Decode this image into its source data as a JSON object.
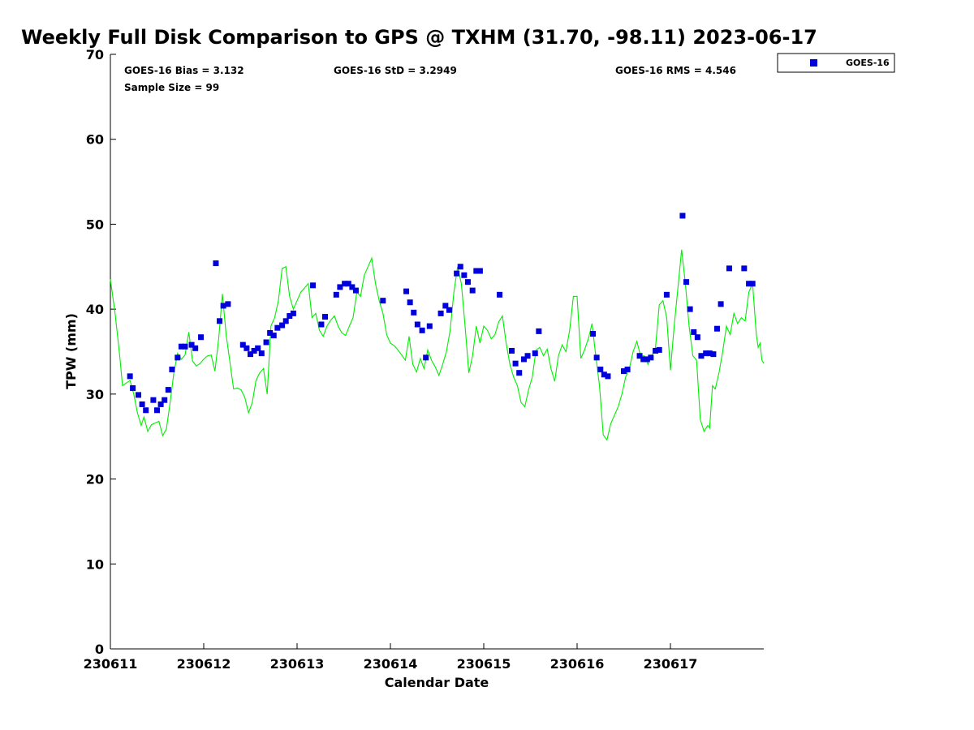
{
  "chart_data": {
    "type": "scatter",
    "title": "Weekly Full Disk Comparison to GPS @ TXHM (31.70, -98.11) 2023-06-17",
    "xlabel": "Calendar Date",
    "ylabel": "TPW (mm)",
    "xlim": [
      0,
      7.0
    ],
    "ylim": [
      0,
      70
    ],
    "y_ticks": [
      0,
      10,
      20,
      30,
      40,
      50,
      60,
      70
    ],
    "x_tick_labels": [
      "230611",
      "230612",
      "230613",
      "230614",
      "230615",
      "230616",
      "230617"
    ],
    "x_tick_positions_days": [
      0,
      1,
      2,
      3,
      4,
      5,
      6
    ],
    "grid": false,
    "legend_position": "top-right",
    "stats": {
      "bias": "GOES-16 Bias = 3.132",
      "std": "GOES-16 StD = 3.2949",
      "rms": "GOES-16 RMS = 4.546",
      "sample": "Sample Size = 99"
    },
    "series": [
      {
        "name": "GOES-16",
        "kind": "scatter",
        "color": "#0000dd",
        "points": [
          [
            0.21,
            32.1
          ],
          [
            0.24,
            30.7
          ],
          [
            0.3,
            29.9
          ],
          [
            0.34,
            28.8
          ],
          [
            0.38,
            28.1
          ],
          [
            0.46,
            29.3
          ],
          [
            0.5,
            28.1
          ],
          [
            0.54,
            28.8
          ],
          [
            0.58,
            29.3
          ],
          [
            0.62,
            30.5
          ],
          [
            0.66,
            32.9
          ],
          [
            0.72,
            34.3
          ],
          [
            0.76,
            35.6
          ],
          [
            0.8,
            35.6
          ],
          [
            0.87,
            35.8
          ],
          [
            0.91,
            35.4
          ],
          [
            0.97,
            36.7
          ],
          [
            1.13,
            45.4
          ],
          [
            1.17,
            38.6
          ],
          [
            1.21,
            40.4
          ],
          [
            1.26,
            40.6
          ],
          [
            1.42,
            35.8
          ],
          [
            1.46,
            35.4
          ],
          [
            1.5,
            34.7
          ],
          [
            1.54,
            35.1
          ],
          [
            1.58,
            35.4
          ],
          [
            1.62,
            34.8
          ],
          [
            1.67,
            36.1
          ],
          [
            1.71,
            37.2
          ],
          [
            1.75,
            36.9
          ],
          [
            1.79,
            37.8
          ],
          [
            1.84,
            38.1
          ],
          [
            1.88,
            38.6
          ],
          [
            1.92,
            39.2
          ],
          [
            1.96,
            39.5
          ],
          [
            2.17,
            42.8
          ],
          [
            2.26,
            38.2
          ],
          [
            2.3,
            39.1
          ],
          [
            2.42,
            41.7
          ],
          [
            2.46,
            42.6
          ],
          [
            2.51,
            43.0
          ],
          [
            2.55,
            43.0
          ],
          [
            2.59,
            42.6
          ],
          [
            2.63,
            42.2
          ],
          [
            2.92,
            41.0
          ],
          [
            3.17,
            42.1
          ],
          [
            3.21,
            40.8
          ],
          [
            3.25,
            39.6
          ],
          [
            3.29,
            38.2
          ],
          [
            3.34,
            37.5
          ],
          [
            3.38,
            34.3
          ],
          [
            3.42,
            38.0
          ],
          [
            3.54,
            39.5
          ],
          [
            3.59,
            40.4
          ],
          [
            3.63,
            39.9
          ],
          [
            3.71,
            44.2
          ],
          [
            3.75,
            45.0
          ],
          [
            3.79,
            44.0
          ],
          [
            3.83,
            43.2
          ],
          [
            3.88,
            42.2
          ],
          [
            3.92,
            44.5
          ],
          [
            3.96,
            44.5
          ],
          [
            4.17,
            41.7
          ],
          [
            4.3,
            35.1
          ],
          [
            4.34,
            33.6
          ],
          [
            4.38,
            32.5
          ],
          [
            4.43,
            34.1
          ],
          [
            4.47,
            34.5
          ],
          [
            4.55,
            34.8
          ],
          [
            4.59,
            37.4
          ],
          [
            5.17,
            37.1
          ],
          [
            5.21,
            34.3
          ],
          [
            5.25,
            32.9
          ],
          [
            5.29,
            32.3
          ],
          [
            5.33,
            32.1
          ],
          [
            5.5,
            32.7
          ],
          [
            5.54,
            32.9
          ],
          [
            5.67,
            34.5
          ],
          [
            5.71,
            34.1
          ],
          [
            5.75,
            34.1
          ],
          [
            5.79,
            34.3
          ],
          [
            5.84,
            35.1
          ],
          [
            5.88,
            35.2
          ],
          [
            5.96,
            41.7
          ],
          [
            6.13,
            51.0
          ],
          [
            6.17,
            43.2
          ],
          [
            6.21,
            40.0
          ],
          [
            6.25,
            37.3
          ],
          [
            6.29,
            36.7
          ],
          [
            6.33,
            34.5
          ],
          [
            6.38,
            34.8
          ],
          [
            6.42,
            34.8
          ],
          [
            6.46,
            34.7
          ],
          [
            6.5,
            37.7
          ],
          [
            6.54,
            40.6
          ],
          [
            6.63,
            44.8
          ],
          [
            6.79,
            44.8
          ],
          [
            6.84,
            43.0
          ],
          [
            6.88,
            43.0
          ]
        ]
      },
      {
        "kind": "line",
        "color": "#00ee00",
        "points": [
          [
            0.0,
            43.5
          ],
          [
            0.05,
            39.5
          ],
          [
            0.1,
            34.5
          ],
          [
            0.13,
            31.0
          ],
          [
            0.17,
            31.3
          ],
          [
            0.21,
            31.6
          ],
          [
            0.25,
            30.0
          ],
          [
            0.29,
            27.8
          ],
          [
            0.33,
            26.3
          ],
          [
            0.36,
            27.3
          ],
          [
            0.4,
            25.6
          ],
          [
            0.44,
            26.4
          ],
          [
            0.48,
            26.6
          ],
          [
            0.52,
            26.8
          ],
          [
            0.56,
            25.1
          ],
          [
            0.6,
            25.9
          ],
          [
            0.64,
            29.0
          ],
          [
            0.68,
            32.5
          ],
          [
            0.72,
            34.8
          ],
          [
            0.76,
            34.1
          ],
          [
            0.8,
            34.6
          ],
          [
            0.84,
            37.3
          ],
          [
            0.88,
            33.9
          ],
          [
            0.92,
            33.3
          ],
          [
            0.96,
            33.6
          ],
          [
            1.0,
            34.1
          ],
          [
            1.04,
            34.5
          ],
          [
            1.08,
            34.6
          ],
          [
            1.12,
            32.7
          ],
          [
            1.16,
            36.5
          ],
          [
            1.2,
            41.8
          ],
          [
            1.24,
            37.0
          ],
          [
            1.28,
            33.8
          ],
          [
            1.32,
            30.6
          ],
          [
            1.36,
            30.7
          ],
          [
            1.4,
            30.5
          ],
          [
            1.44,
            29.6
          ],
          [
            1.48,
            27.8
          ],
          [
            1.52,
            29.0
          ],
          [
            1.56,
            31.6
          ],
          [
            1.6,
            32.5
          ],
          [
            1.64,
            33.0
          ],
          [
            1.68,
            30.0
          ],
          [
            1.72,
            38.0
          ],
          [
            1.76,
            39.0
          ],
          [
            1.8,
            41.0
          ],
          [
            1.84,
            44.8
          ],
          [
            1.88,
            45.0
          ],
          [
            1.92,
            41.5
          ],
          [
            1.96,
            40.0
          ],
          [
            2.0,
            41.0
          ],
          [
            2.04,
            42.0
          ],
          [
            2.08,
            42.5
          ],
          [
            2.12,
            43.0
          ],
          [
            2.16,
            39.0
          ],
          [
            2.2,
            39.5
          ],
          [
            2.24,
            37.5
          ],
          [
            2.28,
            36.8
          ],
          [
            2.32,
            38.0
          ],
          [
            2.36,
            38.7
          ],
          [
            2.4,
            39.2
          ],
          [
            2.44,
            38.0
          ],
          [
            2.48,
            37.2
          ],
          [
            2.52,
            36.9
          ],
          [
            2.56,
            38.0
          ],
          [
            2.6,
            39.0
          ],
          [
            2.64,
            42.0
          ],
          [
            2.68,
            41.5
          ],
          [
            2.72,
            44.0
          ],
          [
            2.76,
            45.0
          ],
          [
            2.8,
            46.0
          ],
          [
            2.84,
            43.0
          ],
          [
            2.88,
            41.0
          ],
          [
            2.92,
            39.5
          ],
          [
            2.96,
            37.0
          ],
          [
            3.0,
            36.0
          ],
          [
            3.04,
            35.7
          ],
          [
            3.08,
            35.2
          ],
          [
            3.12,
            34.6
          ],
          [
            3.16,
            34.0
          ],
          [
            3.2,
            36.8
          ],
          [
            3.24,
            33.5
          ],
          [
            3.28,
            32.6
          ],
          [
            3.32,
            34.2
          ],
          [
            3.36,
            33.0
          ],
          [
            3.4,
            35.2
          ],
          [
            3.44,
            34.0
          ],
          [
            3.48,
            33.2
          ],
          [
            3.52,
            32.2
          ],
          [
            3.56,
            33.5
          ],
          [
            3.6,
            35.0
          ],
          [
            3.64,
            37.5
          ],
          [
            3.68,
            42.0
          ],
          [
            3.72,
            45.0
          ],
          [
            3.76,
            43.0
          ],
          [
            3.8,
            38.0
          ],
          [
            3.84,
            32.5
          ],
          [
            3.88,
            34.5
          ],
          [
            3.92,
            38.0
          ],
          [
            3.96,
            36.0
          ],
          [
            4.0,
            38.0
          ],
          [
            4.04,
            37.5
          ],
          [
            4.08,
            36.5
          ],
          [
            4.12,
            37.0
          ],
          [
            4.16,
            38.5
          ],
          [
            4.2,
            39.2
          ],
          [
            4.24,
            36.0
          ],
          [
            4.28,
            33.5
          ],
          [
            4.32,
            32.0
          ],
          [
            4.36,
            31.0
          ],
          [
            4.4,
            29.0
          ],
          [
            4.44,
            28.5
          ],
          [
            4.48,
            30.5
          ],
          [
            4.52,
            32.0
          ],
          [
            4.56,
            35.2
          ],
          [
            4.6,
            35.5
          ],
          [
            4.64,
            34.5
          ],
          [
            4.68,
            35.3
          ],
          [
            4.72,
            33.0
          ],
          [
            4.76,
            31.5
          ],
          [
            4.8,
            34.5
          ],
          [
            4.84,
            35.8
          ],
          [
            4.88,
            35.0
          ],
          [
            4.92,
            37.5
          ],
          [
            4.96,
            41.5
          ],
          [
            5.0,
            41.5
          ],
          [
            5.04,
            34.2
          ],
          [
            5.08,
            35.2
          ],
          [
            5.12,
            36.5
          ],
          [
            5.16,
            38.3
          ],
          [
            5.2,
            34.5
          ],
          [
            5.24,
            31.0
          ],
          [
            5.28,
            25.2
          ],
          [
            5.32,
            24.6
          ],
          [
            5.36,
            26.5
          ],
          [
            5.4,
            27.5
          ],
          [
            5.44,
            28.5
          ],
          [
            5.48,
            30.0
          ],
          [
            5.52,
            32.0
          ],
          [
            5.56,
            33.0
          ],
          [
            5.6,
            35.0
          ],
          [
            5.64,
            36.2
          ],
          [
            5.68,
            34.5
          ],
          [
            5.72,
            34.5
          ],
          [
            5.76,
            33.5
          ],
          [
            5.8,
            34.5
          ],
          [
            5.84,
            35.5
          ],
          [
            5.88,
            40.5
          ],
          [
            5.92,
            41.0
          ],
          [
            5.96,
            39.0
          ],
          [
            6.0,
            32.8
          ],
          [
            6.04,
            38.0
          ],
          [
            6.08,
            42.5
          ],
          [
            6.12,
            47.0
          ],
          [
            6.16,
            43.0
          ],
          [
            6.2,
            38.0
          ],
          [
            6.24,
            34.5
          ],
          [
            6.28,
            34.0
          ],
          [
            6.32,
            27.0
          ],
          [
            6.36,
            25.6
          ],
          [
            6.4,
            26.3
          ],
          [
            6.42,
            26.0
          ],
          [
            6.45,
            31.0
          ],
          [
            6.48,
            30.6
          ],
          [
            6.52,
            32.5
          ],
          [
            6.56,
            35.0
          ],
          [
            6.6,
            38.0
          ],
          [
            6.64,
            37.0
          ],
          [
            6.68,
            39.5
          ],
          [
            6.72,
            38.3
          ],
          [
            6.76,
            39.0
          ],
          [
            6.8,
            38.6
          ],
          [
            6.84,
            42.0
          ],
          [
            6.88,
            43.0
          ],
          [
            6.92,
            37.0
          ],
          [
            6.94,
            35.5
          ],
          [
            6.96,
            36.0
          ],
          [
            6.98,
            34.0
          ],
          [
            7.0,
            33.6
          ]
        ]
      }
    ]
  }
}
